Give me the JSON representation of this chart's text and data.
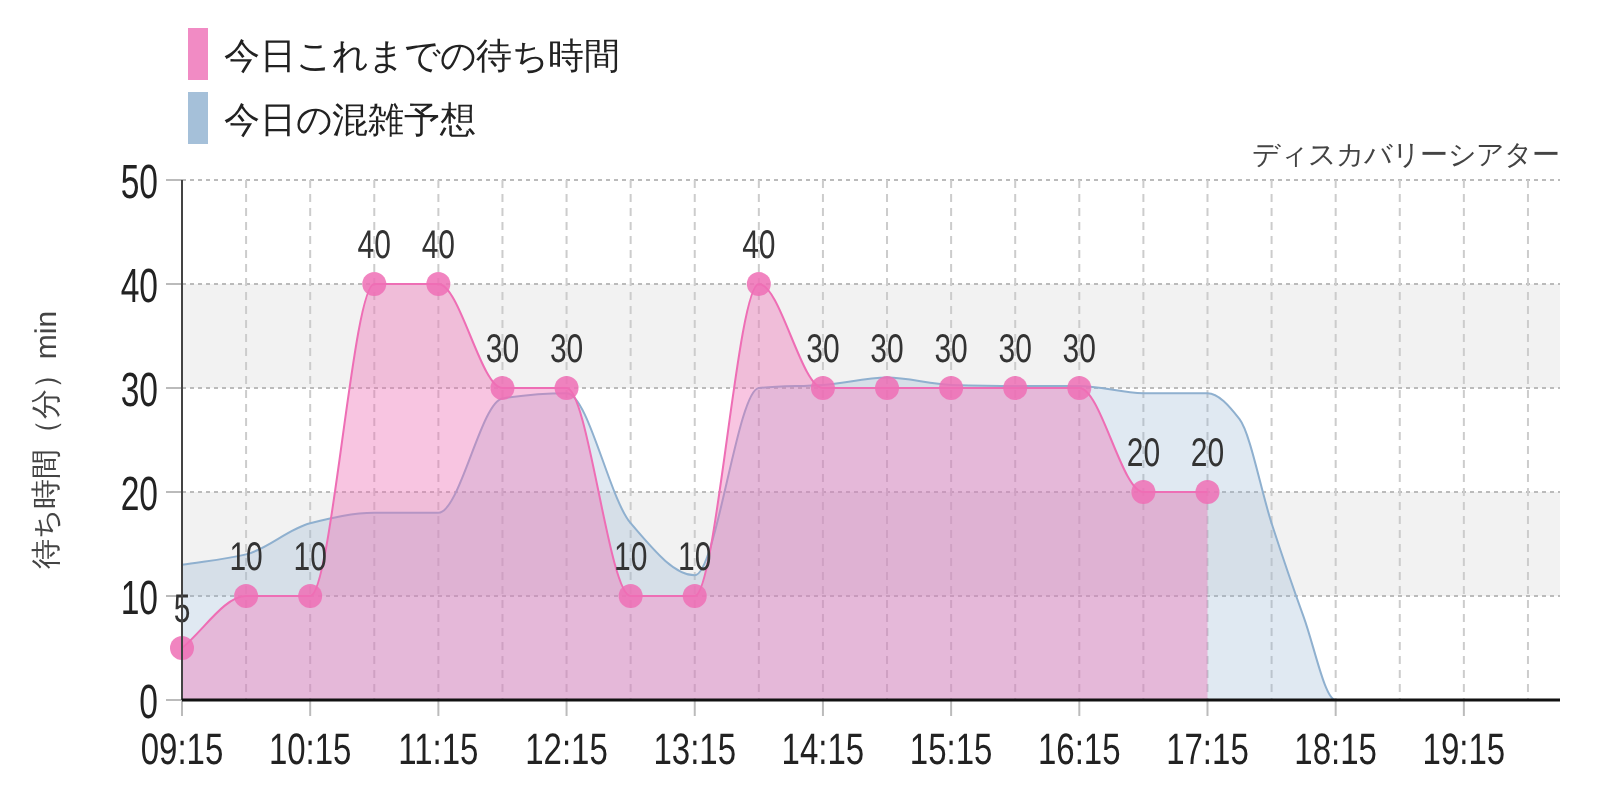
{
  "chart_data": {
    "type": "area",
    "subtitle": "ディスカバリーシアター",
    "ylabel": "待ち時間（分）min",
    "legend": "top left",
    "marker": "circle",
    "grid": true,
    "xlim": [
      9.25,
      20.0
    ],
    "ylim": [
      0,
      50
    ],
    "yticks": [
      0,
      10,
      20,
      30,
      40,
      50
    ],
    "xticks": [
      {
        "value": 9.25,
        "label": "09:15"
      },
      {
        "value": 9.75,
        "label": null
      },
      {
        "value": 10.25,
        "label": "10:15"
      },
      {
        "value": 10.75,
        "label": null
      },
      {
        "value": 11.25,
        "label": "11:15"
      },
      {
        "value": 11.75,
        "label": null
      },
      {
        "value": 12.25,
        "label": "12:15"
      },
      {
        "value": 12.75,
        "label": null
      },
      {
        "value": 13.25,
        "label": "13:15"
      },
      {
        "value": 13.75,
        "label": null
      },
      {
        "value": 14.25,
        "label": "14:15"
      },
      {
        "value": 14.75,
        "label": null
      },
      {
        "value": 15.25,
        "label": "15:15"
      },
      {
        "value": 15.75,
        "label": null
      },
      {
        "value": 16.25,
        "label": "16:15"
      },
      {
        "value": 16.75,
        "label": null
      },
      {
        "value": 17.25,
        "label": "17:15"
      },
      {
        "value": 17.75,
        "label": null
      },
      {
        "value": 18.25,
        "label": "18:15"
      },
      {
        "value": 18.75,
        "label": null
      },
      {
        "value": 19.25,
        "label": "19:15"
      },
      {
        "value": 19.75,
        "label": null
      }
    ],
    "bands": [
      {
        "axis": "y",
        "from": 10,
        "to": 20,
        "color": "#f2f2f2"
      },
      {
        "axis": "y",
        "from": 30,
        "to": 40,
        "color": "#f2f2f2"
      }
    ],
    "series": [
      {
        "name": "今日の混雑予想",
        "color": "#8fb0cf",
        "marker": "none",
        "x": [
          9.25,
          9.75,
          10.25,
          10.75,
          11.25,
          11.75,
          12.25,
          12.75,
          13.25,
          13.75,
          14.25,
          14.75,
          15.25,
          15.75,
          16.25,
          16.75,
          17.25,
          17.5,
          17.75,
          18.0,
          18.25,
          18.75,
          19.25,
          19.75,
          20.0
        ],
        "values": [
          13,
          14,
          17,
          18,
          18,
          29,
          29.5,
          17,
          12,
          30,
          30.3,
          31,
          30.3,
          30.2,
          30.2,
          29.5,
          29.5,
          27,
          17,
          8,
          0,
          0,
          0,
          0,
          0
        ]
      },
      {
        "name": "今日これまでの待ち時間",
        "color": "#ee6eb5",
        "x": [
          9.25,
          9.75,
          10.25,
          10.75,
          11.25,
          11.75,
          12.25,
          12.75,
          13.25,
          13.75,
          14.25,
          14.75,
          15.25,
          15.75,
          16.25,
          16.75,
          17.25
        ],
        "values": [
          5,
          10,
          10,
          40,
          40,
          30,
          30,
          10,
          10,
          40,
          30,
          30,
          30,
          30,
          30,
          20,
          20
        ],
        "value_labels": [
          "5",
          "10",
          "10",
          "40",
          "40",
          "30",
          "30",
          "10",
          "10",
          "40",
          "30",
          "30",
          "30",
          "30",
          "30",
          "20",
          "20"
        ]
      }
    ]
  }
}
